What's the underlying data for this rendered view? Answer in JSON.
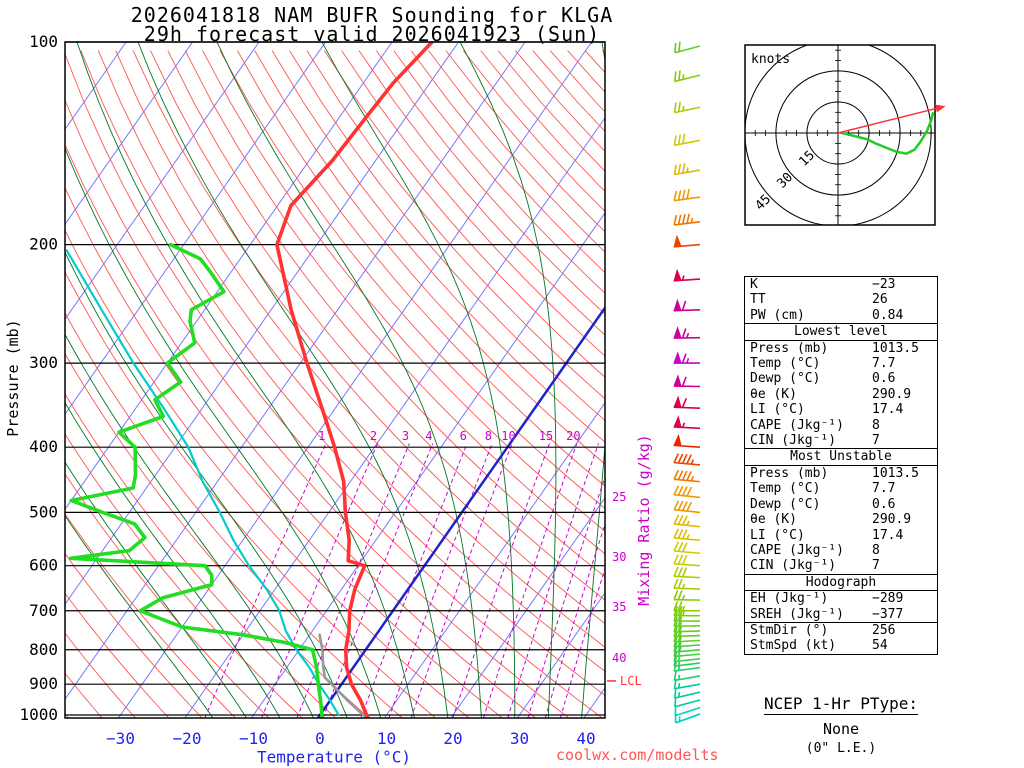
{
  "title": {
    "line1": "2026041818 NAM BUFR Sounding for KLGA",
    "line2": "29h forecast valid 2026041923 (Sun)"
  },
  "watermark": "coolwx.com/modelts",
  "axes": {
    "pressure_label": "Pressure (mb)",
    "temperature_label": "Temperature (°C)",
    "mixing_ratio_label": "Mixing Ratio (g/kg)",
    "pressure_ticks": [
      100,
      200,
      300,
      400,
      500,
      600,
      700,
      800,
      900,
      1000
    ],
    "temperature_ticks": [
      -30,
      -20,
      -10,
      0,
      10,
      20,
      30,
      40
    ],
    "lcl_label": "LCL"
  },
  "chart_data": {
    "type": "line",
    "subtype": "skew-t-log-p-sounding",
    "pressure_axis_mb": {
      "min": 100,
      "max": 1023,
      "scale": "log"
    },
    "temperature_axis_c": {
      "min": -38,
      "max": 42
    },
    "lcl_pressure_mb": 890,
    "series": [
      {
        "name": "temperature",
        "color": "#ff3333",
        "pressure_mb": [
          1013,
          1000,
          950,
          925,
          900,
          850,
          800,
          750,
          700,
          650,
          600,
          590,
          550,
          500,
          450,
          400,
          350,
          300,
          250,
          200,
          175,
          150,
          130,
          115,
          100
        ],
        "value_c": [
          7.7,
          7.0,
          4.5,
          3.0,
          1.5,
          -1.0,
          -3.0,
          -4.5,
          -6.5,
          -8.0,
          -9.0,
          -12.0,
          -14.0,
          -17.5,
          -21.0,
          -26.0,
          -32.0,
          -39.0,
          -47.0,
          -56.0,
          -58.0,
          -56.5,
          -56.0,
          -55.5,
          -54.0
        ]
      },
      {
        "name": "dewpoint",
        "color": "#22dd22",
        "pressure_mb": [
          1013,
          1000,
          950,
          900,
          850,
          800,
          780,
          760,
          740,
          700,
          670,
          640,
          620,
          600,
          585,
          570,
          545,
          520,
          500,
          480,
          460,
          440,
          400,
          380,
          360,
          340,
          320,
          300,
          280,
          260,
          250,
          235,
          220,
          210,
          200
        ],
        "value_c": [
          0.6,
          0.3,
          -1.5,
          -3.5,
          -5.5,
          -8.0,
          -13.0,
          -20.0,
          -30.0,
          -38.0,
          -36.0,
          -30.0,
          -31.0,
          -33.0,
          -54.0,
          -46.0,
          -45.0,
          -48.0,
          -54.0,
          -60.0,
          -52.0,
          -53.0,
          -56.0,
          -60.0,
          -55.0,
          -58.0,
          -56.0,
          -60.0,
          -58.0,
          -61.0,
          -62.0,
          -59.0,
          -63.0,
          -66.0,
          -72.0
        ]
      },
      {
        "name": "wet_bulb",
        "color": "#00cccc",
        "pressure_mb": [
          1000,
          950,
          900,
          850,
          800,
          750,
          700,
          650,
          600,
          550,
          500,
          450,
          400,
          350,
          300,
          250,
          204
        ],
        "value_c": [
          2.8,
          -0.1,
          -3.4,
          -6.6,
          -10.4,
          -14.0,
          -17.1,
          -21.3,
          -26.4,
          -31.4,
          -36.4,
          -42.2,
          -48.0,
          -55.8,
          -65.1,
          -75.5,
          -87.0
        ]
      },
      {
        "name": "parcel",
        "color": "#999999",
        "pressure_mb": [
          1013,
          1000,
          950,
          900,
          880,
          850,
          800,
          760
        ],
        "value_c": [
          7.7,
          6.5,
          2.5,
          -1.5,
          -3.2,
          -4.5,
          -6.5,
          -8.5
        ]
      }
    ],
    "background": {
      "isotherm_step_c": 10,
      "isotherm_color": "#7777ff",
      "isotherm_zero_color": "#2222cc",
      "dry_adiabats_theta_k": {
        "min": 235,
        "max": 475,
        "step": 5,
        "color": "#ff5555"
      },
      "moist_adiabats_start_c": {
        "min": -15,
        "max": 40,
        "step": 5,
        "color": "#007722"
      },
      "mixing_ratio_gkg": [
        1,
        2,
        3,
        4,
        6,
        8,
        10,
        15,
        20,
        25,
        30,
        35,
        40
      ],
      "mixing_ratio_color": "#cc00cc",
      "mixing_ratio_axis_labels": [
        1,
        2,
        3,
        4,
        6,
        8,
        10,
        15,
        20
      ],
      "mixing_ratio_right_labels": [
        {
          "value": 25,
          "y": 497
        },
        {
          "value": 30,
          "y": 557
        },
        {
          "value": 35,
          "y": 607
        },
        {
          "value": 40,
          "y": 658
        }
      ]
    },
    "wind_barbs": {
      "colors_by_speed": [
        [
          9,
          "#00dddd"
        ],
        [
          12,
          "#00d4bb"
        ],
        [
          15,
          "#00cc99"
        ],
        [
          18,
          "#22cc66"
        ],
        [
          21,
          "#44cc44"
        ],
        [
          24,
          "#66cc22"
        ],
        [
          27,
          "#88cc00"
        ],
        [
          31,
          "#aacc00"
        ],
        [
          35,
          "#cccc00"
        ],
        [
          39,
          "#ddbb00"
        ],
        [
          43,
          "#ee9900"
        ],
        [
          47,
          "#ee7700"
        ],
        [
          51,
          "#ee4400"
        ],
        [
          55,
          "#ee2200"
        ],
        [
          60,
          "#dd0044"
        ],
        [
          66,
          "#cc0099"
        ],
        [
          999,
          "#cc00cc"
        ]
      ],
      "levels_p_dir_spd": [
        [
          1013,
          250,
          8
        ],
        [
          1000,
          250,
          10
        ],
        [
          975,
          252,
          12
        ],
        [
          950,
          255,
          13
        ],
        [
          925,
          257,
          15
        ],
        [
          900,
          260,
          15
        ],
        [
          875,
          260,
          17
        ],
        [
          850,
          262,
          18
        ],
        [
          837,
          263,
          18
        ],
        [
          825,
          264,
          19
        ],
        [
          812,
          265,
          20
        ],
        [
          800,
          265,
          20
        ],
        [
          787,
          266,
          21
        ],
        [
          775,
          267,
          22
        ],
        [
          762,
          268,
          22
        ],
        [
          750,
          268,
          23
        ],
        [
          737,
          269,
          24
        ],
        [
          725,
          270,
          24
        ],
        [
          712,
          270,
          25
        ],
        [
          700,
          270,
          25
        ],
        [
          675,
          271,
          27
        ],
        [
          650,
          272,
          28
        ],
        [
          625,
          273,
          30
        ],
        [
          600,
          274,
          32
        ],
        [
          575,
          275,
          34
        ],
        [
          550,
          275,
          36
        ],
        [
          525,
          276,
          38
        ],
        [
          500,
          276,
          40
        ],
        [
          475,
          276,
          43
        ],
        [
          450,
          275,
          45
        ],
        [
          425,
          275,
          48
        ],
        [
          400,
          274,
          52
        ],
        [
          375,
          273,
          56
        ],
        [
          350,
          272,
          60
        ],
        [
          325,
          271,
          64
        ],
        [
          300,
          270,
          68
        ],
        [
          275,
          269,
          65
        ],
        [
          250,
          268,
          62
        ],
        [
          225,
          266,
          56
        ],
        [
          200,
          265,
          50
        ],
        [
          185,
          263,
          46
        ],
        [
          170,
          262,
          42
        ],
        [
          155,
          260,
          37
        ],
        [
          140,
          259,
          33
        ],
        [
          125,
          258,
          28
        ],
        [
          112,
          256,
          25
        ],
        [
          100,
          255,
          22
        ]
      ]
    }
  },
  "hodograph": {
    "unit_label": "knots",
    "rings_kt": [
      15,
      30,
      45
    ],
    "trace_color": "#22cc22",
    "storm_color": "#ff3333",
    "trace_uv_kt": [
      [
        2,
        0
      ],
      [
        6,
        -1
      ],
      [
        10,
        -2
      ],
      [
        14,
        -3
      ],
      [
        18,
        -5
      ],
      [
        23,
        -7
      ],
      [
        28,
        -9
      ],
      [
        33,
        -10
      ],
      [
        37,
        -8
      ],
      [
        40,
        -4
      ],
      [
        43,
        1
      ],
      [
        45,
        6
      ],
      [
        46,
        10
      ]
    ],
    "storm_motion_uv_kt": [
      52,
      13
    ]
  },
  "indices": {
    "sections": [
      {
        "title": null,
        "groups": [
          [
            [
              "K",
              "−23"
            ],
            [
              "TT",
              "26"
            ],
            [
              "PW (cm)",
              "0.84"
            ]
          ]
        ]
      },
      {
        "title": "Lowest level",
        "groups": [
          [
            [
              "Press (mb)",
              "1013.5"
            ],
            [
              "Temp (°C)",
              "7.7"
            ],
            [
              "Dewp (°C)",
              "0.6"
            ],
            [
              "θe (K)",
              "290.9"
            ],
            [
              "LI (°C)",
              "17.4"
            ],
            [
              "CAPE (Jkg⁻¹)",
              "8"
            ],
            [
              "CIN (Jkg⁻¹)",
              "7"
            ]
          ]
        ]
      },
      {
        "title": "Most Unstable",
        "groups": [
          [
            [
              "Press (mb)",
              "1013.5"
            ],
            [
              "Temp (°C)",
              "7.7"
            ],
            [
              "Dewp (°C)",
              "0.6"
            ],
            [
              "θe (K)",
              "290.9"
            ],
            [
              "LI (°C)",
              "17.4"
            ],
            [
              "CAPE (Jkg⁻¹)",
              "8"
            ],
            [
              "CIN (Jkg⁻¹)",
              "7"
            ]
          ]
        ]
      },
      {
        "title": "Hodograph",
        "groups": [
          [
            [
              "EH (Jkg⁻¹)",
              "−289"
            ],
            [
              "SREH (Jkg⁻¹)",
              "−377"
            ]
          ],
          [
            [
              "StmDir (°)",
              "256"
            ],
            [
              "StmSpd (kt)",
              "54"
            ]
          ]
        ]
      }
    ]
  },
  "ptype": {
    "title": "NCEP 1-Hr PType:",
    "value": "None",
    "note": "(0\" L.E.)"
  }
}
